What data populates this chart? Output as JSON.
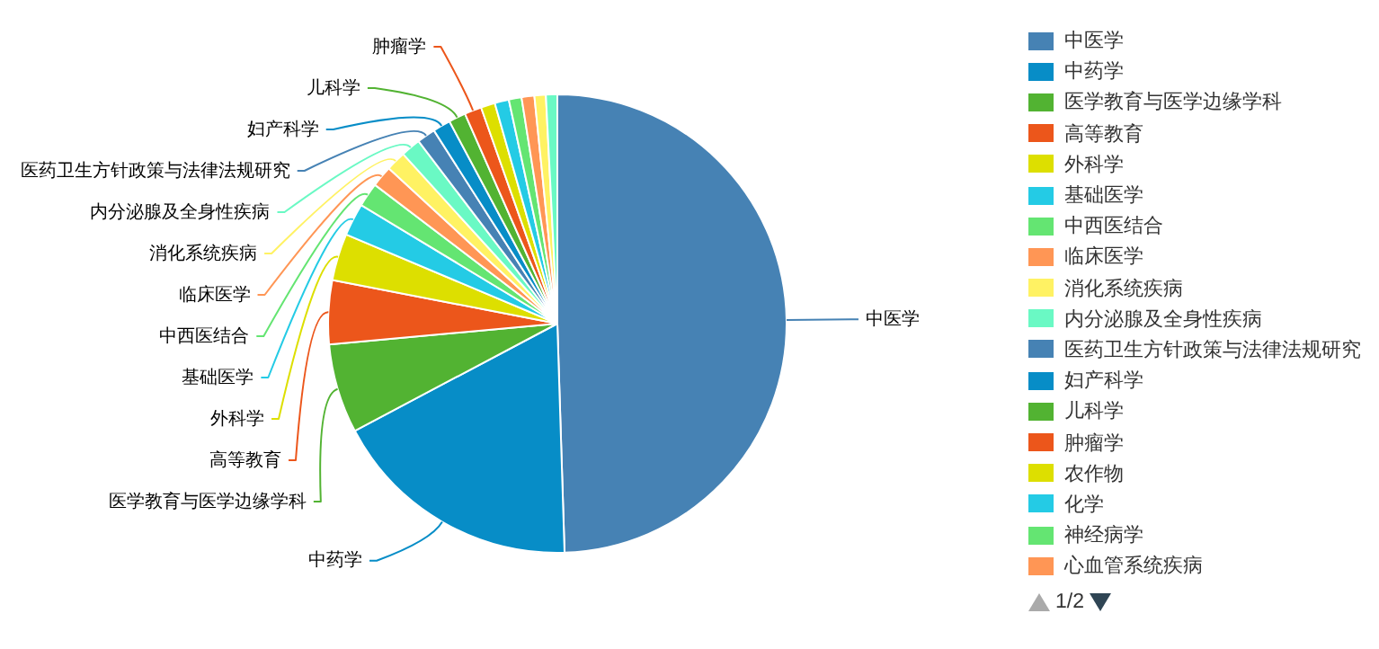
{
  "chart_data": {
    "type": "pie",
    "categories": [
      "中医学",
      "中药学",
      "医学教育与医学边缘学科",
      "高等教育",
      "外科学",
      "基础医学",
      "中西医结合",
      "临床医学",
      "消化系统疾病",
      "内分泌腺及全身性疾病",
      "医药卫生方针政策与法律法规研究",
      "妇产科学",
      "儿科学",
      "肿瘤学",
      "农作物",
      "化学",
      "神经病学",
      "心血管系统疾病",
      null,
      null
    ],
    "values": [
      49.5,
      17.75,
      6.3,
      4.5,
      3.3,
      2.3,
      1.7,
      1.5,
      1.4,
      1.4,
      1.3,
      1.25,
      1.2,
      1.2,
      1.0,
      1.0,
      0.9,
      0.9,
      0.8,
      0.8
    ],
    "colors": [
      "#4682b4",
      "#078dc7",
      "#52b332",
      "#ec561b",
      "#dddf00",
      "#24cbe5",
      "#64e572",
      "#ff9655",
      "#fff263",
      "#6af9c4",
      "#4682b4",
      "#078dc7",
      "#52b332",
      "#ec561b",
      "#dddf00",
      "#24cbe5",
      "#64e572",
      "#ff9655",
      "#fff263",
      "#6af9c4"
    ],
    "legend": "right",
    "annotations": [
      "1/2"
    ]
  }
}
